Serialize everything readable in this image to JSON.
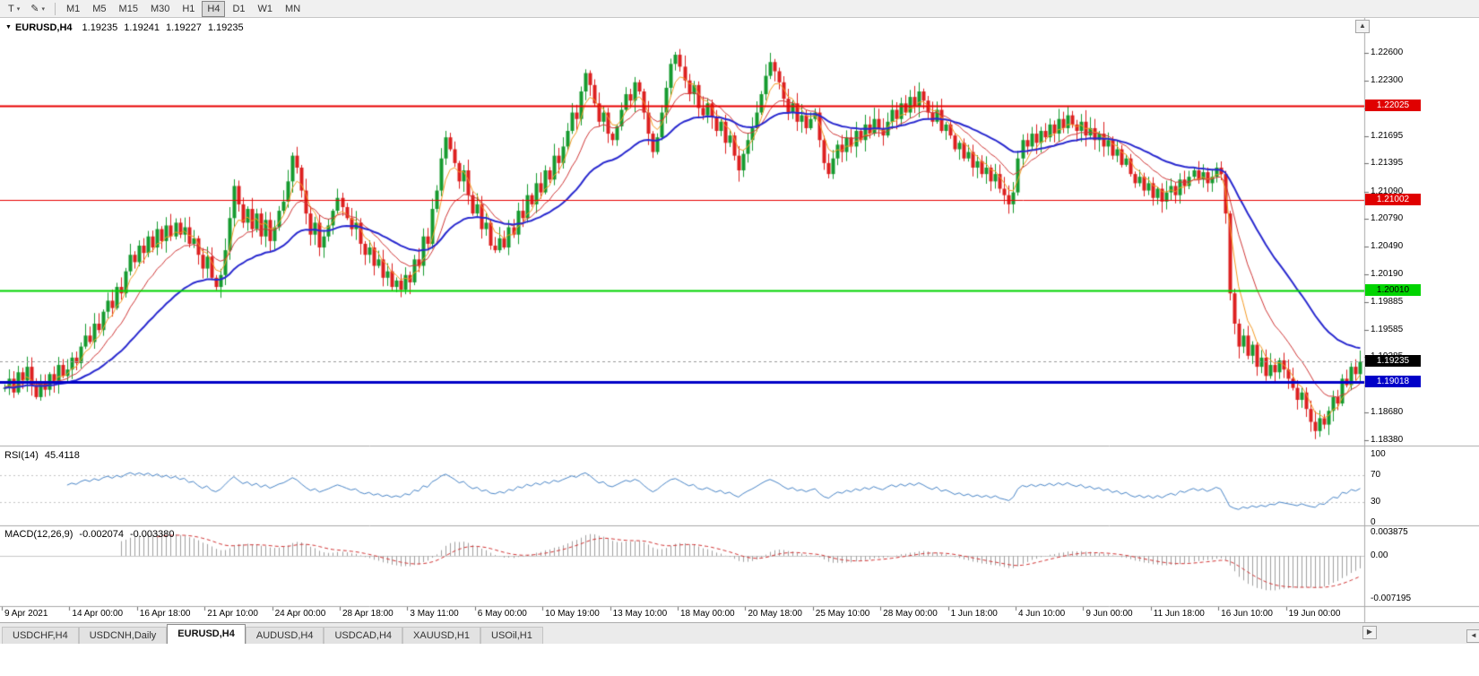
{
  "toolbar": {
    "text_tool_label": "T",
    "dropdown_glyph": "▾",
    "draw_tool_glyph": "✎",
    "timeframes": [
      "M1",
      "M5",
      "M15",
      "M30",
      "H1",
      "H4",
      "D1",
      "W1",
      "MN"
    ],
    "active_timeframe": "H4"
  },
  "main_chart": {
    "info": {
      "marker": "▼",
      "symbol": "EURUSD,H4",
      "open": "1.19235",
      "high": "1.19241",
      "low": "1.19227",
      "close": "1.19235"
    },
    "scroll_up_glyph": "▲",
    "price_ticks": [
      "1.22600",
      "1.22300",
      "1.21995",
      "1.21695",
      "1.21395",
      "1.21090",
      "1.20790",
      "1.20490",
      "1.20190",
      "1.19885",
      "1.19585",
      "1.19285",
      "1.18980",
      "1.18680",
      "1.18380"
    ],
    "price_tags": [
      {
        "label": "1.22025",
        "price": 1.22025,
        "bg": "#e00000",
        "fg": "#ffffff",
        "name": "resistance-upper"
      },
      {
        "label": "1.21002",
        "price": 1.21002,
        "bg": "#e00000",
        "fg": "#ffffff",
        "name": "resistance-lower"
      },
      {
        "label": "1.20010",
        "price": 1.2001,
        "bg": "#00d400",
        "fg": "#000000",
        "name": "support-green"
      },
      {
        "label": "1.19235",
        "price": 1.19235,
        "bg": "#000000",
        "fg": "#ffffff",
        "name": "current-price"
      },
      {
        "label": "1.19018",
        "price": 1.19018,
        "bg": "#0000c8",
        "fg": "#ffffff",
        "name": "support-blue"
      }
    ]
  },
  "rsi_pane": {
    "name": "RSI(14)",
    "value": "45.4118",
    "ticks": [
      {
        "label": "100",
        "value": 100
      },
      {
        "label": "70",
        "value": 70
      },
      {
        "label": "30",
        "value": 30
      },
      {
        "label": "0",
        "value": 0
      }
    ],
    "guides": [
      70,
      30
    ],
    "line_color": "#4a86c8"
  },
  "macd_pane": {
    "name": "MACD(12,26,9)",
    "value": "-0.002074",
    "signal_value": "-0.003380",
    "ticks": [
      {
        "label": "0.003875",
        "value": 0.003875
      },
      {
        "label": "0.00",
        "value": 0
      },
      {
        "label": "-0.007195",
        "value": -0.007195
      }
    ],
    "histogram_color": "#a0a0a0",
    "signal_color": "#d23434"
  },
  "time_axis": {
    "labels": [
      "9 Apr 2021",
      "14 Apr 00:00",
      "16 Apr 18:00",
      "21 Apr 10:00",
      "24 Apr 00:00",
      "28 Apr 18:00",
      "3 May 11:00",
      "6 May 00:00",
      "10 May 19:00",
      "13 May 10:00",
      "18 May 00:00",
      "20 May 18:00",
      "25 May 10:00",
      "28 May 00:00",
      "1 Jun 18:00",
      "4 Jun 10:00",
      "9 Jun 00:00",
      "11 Jun 18:00",
      "16 Jun 10:00",
      "19 Jun 00:00"
    ]
  },
  "tab_bar": {
    "tabs": [
      "USDCHF,H4",
      "USDCNH,Daily",
      "EURUSD,H4",
      "AUDUSD,H4",
      "USDCAD,H4",
      "XAUUSD,H1",
      "USOil,H1"
    ],
    "active": "EURUSD,H4",
    "scroll_right_glyph": "▶",
    "scroll_left_glyph": "◄"
  },
  "chart_data": {
    "type": "candlestick",
    "symbol": "EURUSD",
    "timeframe": "H4",
    "title": "EURUSD,H4",
    "price_range": [
      1.1838,
      1.2298
    ],
    "x_tick_labels": [
      "9 Apr 2021",
      "14 Apr 00:00",
      "16 Apr 18:00",
      "21 Apr 10:00",
      "24 Apr 00:00",
      "28 Apr 18:00",
      "3 May 11:00",
      "6 May 00:00",
      "10 May 19:00",
      "13 May 10:00",
      "18 May 00:00",
      "20 May 18:00",
      "25 May 10:00",
      "28 May 00:00",
      "1 Jun 18:00",
      "4 Jun 10:00",
      "9 Jun 00:00",
      "11 Jun 18:00",
      "16 Jun 10:00",
      "19 Jun 00:00"
    ],
    "candles_per_x_tick": 15,
    "closes": [
      1.1895,
      1.1905,
      1.189,
      1.1912,
      1.1903,
      1.1918,
      1.1898,
      1.1885,
      1.1902,
      1.1893,
      1.191,
      1.19,
      1.192,
      1.1908,
      1.1915,
      1.1928,
      1.1922,
      1.194,
      1.1952,
      1.1945,
      1.1965,
      1.1958,
      1.1978,
      1.199,
      1.1982,
      1.2005,
      1.1998,
      1.2022,
      1.204,
      1.2032,
      1.205,
      1.2042,
      1.206,
      1.2048,
      1.2068,
      1.2055,
      1.2072,
      1.206,
      1.2075,
      1.2062,
      1.207,
      1.2052,
      1.2058,
      1.204,
      1.2025,
      1.2038,
      1.2015,
      1.2005,
      1.2018,
      1.2045,
      1.208,
      1.2115,
      1.2095,
      1.2075,
      1.209,
      1.2068,
      1.2085,
      1.206,
      1.2078,
      1.2055,
      1.207,
      1.2088,
      1.2098,
      1.212,
      1.2148,
      1.2135,
      1.211,
      1.2085,
      1.2062,
      1.2075,
      1.2048,
      1.206,
      1.2072,
      1.2088,
      1.2102,
      1.2092,
      1.208,
      1.2068,
      1.2075,
      1.2052,
      1.204,
      1.2048,
      1.2028,
      1.2035,
      1.2015,
      1.2022,
      1.2005,
      1.2012,
      1.2002,
      1.2018,
      1.201,
      1.2035,
      1.2028,
      1.206,
      1.2052,
      1.209,
      1.211,
      1.2145,
      1.2168,
      1.2155,
      1.214,
      1.212,
      1.2132,
      1.2105,
      1.2085,
      1.2095,
      1.2068,
      1.2075,
      1.205,
      1.2045,
      1.2058,
      1.2048,
      1.207,
      1.2062,
      1.2088,
      1.208,
      1.2105,
      1.2095,
      1.2118,
      1.2108,
      1.2132,
      1.2122,
      1.2148,
      1.214,
      1.2158,
      1.2175,
      1.2195,
      1.2188,
      1.2218,
      1.2238,
      1.2225,
      1.2205,
      1.2185,
      1.2195,
      1.2172,
      1.2165,
      1.218,
      1.2198,
      1.2215,
      1.2208,
      1.2228,
      1.2218,
      1.2195,
      1.2172,
      1.2152,
      1.2168,
      1.2195,
      1.2222,
      1.2248,
      1.2258,
      1.2245,
      1.223,
      1.2215,
      1.2225,
      1.22,
      1.2192,
      1.2205,
      1.219,
      1.2175,
      1.2185,
      1.2162,
      1.217,
      1.2148,
      1.2132,
      1.215,
      1.2165,
      1.2178,
      1.2195,
      1.2215,
      1.2235,
      1.225,
      1.224,
      1.2228,
      1.221,
      1.2195,
      1.2205,
      1.2185,
      1.2192,
      1.2178,
      1.2188,
      1.2195,
      1.2165,
      1.214,
      1.2128,
      1.2145,
      1.216,
      1.2152,
      1.2168,
      1.2158,
      1.2175,
      1.2165,
      1.2182,
      1.2172,
      1.2188,
      1.2178,
      1.217,
      1.2185,
      1.2198,
      1.2188,
      1.2205,
      1.2195,
      1.2212,
      1.2202,
      1.2218,
      1.2208,
      1.2195,
      1.2185,
      1.2198,
      1.2175,
      1.2182,
      1.217,
      1.2155,
      1.2162,
      1.2145,
      1.2152,
      1.2135,
      1.2142,
      1.2128,
      1.2135,
      1.212,
      1.2128,
      1.2112,
      1.2105,
      1.2095,
      1.2108,
      1.2145,
      1.2165,
      1.2158,
      1.2172,
      1.2162,
      1.2175,
      1.2168,
      1.2182,
      1.2172,
      1.2188,
      1.2178,
      1.2192,
      1.2182,
      1.2175,
      1.2185,
      1.217,
      1.2178,
      1.2165,
      1.2172,
      1.2158,
      1.2165,
      1.2148,
      1.2155,
      1.2138,
      1.2145,
      1.2128,
      1.2118,
      1.2125,
      1.211,
      1.2118,
      1.2102,
      1.2112,
      1.2098,
      1.2108,
      1.2115,
      1.2105,
      1.2122,
      1.2115,
      1.2125,
      1.2132,
      1.2122,
      1.213,
      1.2118,
      1.2125,
      1.2135,
      1.2128,
      1.2085,
      1.1998,
      1.1965,
      1.194,
      1.1952,
      1.193,
      1.1942,
      1.1918,
      1.1928,
      1.1908,
      1.192,
      1.1912,
      1.1925,
      1.1915,
      1.1905,
      1.1895,
      1.1882,
      1.189,
      1.1872,
      1.1858,
      1.1848,
      1.1862,
      1.1855,
      1.187,
      1.1885,
      1.1878,
      1.1905,
      1.1898,
      1.1918,
      1.191,
      1.19235
    ],
    "last_ohlc": {
      "open": 1.19235,
      "high": 1.19241,
      "low": 1.19227,
      "close": 1.19235
    },
    "levels": [
      {
        "price": 1.22025,
        "color": "#e80000",
        "width": 2,
        "style": "solid"
      },
      {
        "price": 1.21002,
        "color": "#e80000",
        "width": 1,
        "style": "solid"
      },
      {
        "price": 1.2001,
        "color": "#00d400",
        "width": 2,
        "style": "solid"
      },
      {
        "price": 1.19018,
        "color": "#0000c8",
        "width": 3,
        "style": "solid"
      },
      {
        "price": 1.19235,
        "color": "#9a9a9a",
        "width": 1,
        "style": "dashed"
      }
    ],
    "moving_averages": [
      {
        "type": "EMA",
        "period": 5,
        "color": "#f59a23"
      },
      {
        "type": "EMA",
        "period": 13,
        "color": "#d13838"
      },
      {
        "type": "EMA",
        "period": 34,
        "color": "#2929cf"
      }
    ],
    "indicators": [
      {
        "type": "RSI",
        "period": 14,
        "current": 45.4118,
        "levels": [
          70,
          30
        ]
      },
      {
        "type": "MACD",
        "params": [
          12,
          26,
          9
        ],
        "current": [
          -0.002074,
          -0.00338
        ]
      }
    ],
    "colors": {
      "up": "#169b2f",
      "down": "#dd2020",
      "background": "#ffffff"
    }
  }
}
